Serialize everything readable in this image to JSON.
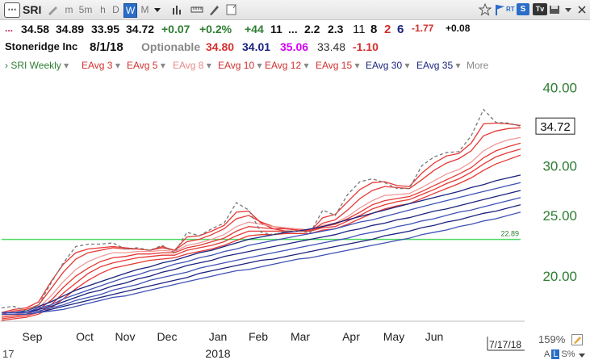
{
  "toolbar": {
    "ticker": "SRI",
    "periods": [
      "m",
      "5m",
      "h",
      "D",
      "W",
      "M"
    ],
    "active_period": "W",
    "icons": [
      "ticker-box-icon",
      "pencil-icon",
      "bar-chart-icon",
      "ruler-icon",
      "draw-pencil-icon",
      "note-icon",
      "star-icon",
      "flag-icon",
      "rt-badge-icon",
      "s-badge-icon",
      "tv-badge-icon",
      "save-icon",
      "settings-icon",
      "close-icon"
    ],
    "rt_label": "RT",
    "s_label": "S",
    "tv_label": "Tv"
  },
  "quote": {
    "dots": "...",
    "open": "34.58",
    "high": "34.89",
    "low": "33.95",
    "close": "34.72",
    "change": "+0.07",
    "change_pct": "+0.2%",
    "val1": "+44",
    "val2": "11",
    "val3": "...",
    "val4": "2.2",
    "val5": "2.3",
    "val6": "11",
    "val7": "8",
    "val8": "2",
    "val9": "6",
    "val10": "-1.77",
    "val11": "+0.08"
  },
  "info": {
    "name": "Stoneridge Inc",
    "date": "8/1/18",
    "optionable": "Optionable",
    "v1": "34.80",
    "v2": "34.01",
    "v3": "35.06",
    "v4": "33.48",
    "v5": "-1.10"
  },
  "legend": {
    "items": [
      {
        "label": "SRI Weekly",
        "color": "#2e7d32"
      },
      {
        "label": "EAvg 3",
        "color": "#d32f2f"
      },
      {
        "label": "EAvg 5",
        "color": "#d32f2f"
      },
      {
        "label": "EAvg 8",
        "color": "#e88a8a"
      },
      {
        "label": "EAvg 10",
        "color": "#d32f2f"
      },
      {
        "label": "EAvg 12",
        "color": "#d32f2f"
      },
      {
        "label": "EAvg 15",
        "color": "#d32f2f"
      },
      {
        "label": "EAvg 30",
        "color": "#1a237e"
      },
      {
        "label": "EAvg 35",
        "color": "#1a237e"
      }
    ],
    "more": "More"
  },
  "chart_data": {
    "type": "line",
    "x_labels": [
      "Sep",
      "Oct",
      "Nov",
      "Dec",
      "Jan",
      "Feb",
      "Mar",
      "Apr",
      "May",
      "Jun"
    ],
    "year_label": "2018",
    "left_edge_label": "17",
    "date_label": "7/17/18",
    "zoom": "159%",
    "y_ticks": [
      "40.00",
      "30.00",
      "25.00",
      "20.00"
    ],
    "ylim": [
      17.0,
      42.0
    ],
    "current_price": "34.72",
    "hline_value": 22.89,
    "hline_label": "22.89",
    "colors": {
      "price": "#777777",
      "red": "#e53935",
      "pink": "#ef9a9a",
      "blue": "#1a237e",
      "bline": "#3f51b5",
      "hline": "#4cd964",
      "axis": "#2e7d32"
    },
    "price": [
      17.8,
      17.9,
      17.6,
      18.0,
      19.5,
      21.0,
      22.3,
      22.5,
      22.5,
      22.6,
      22.1,
      22.2,
      22.0,
      22.4,
      21.8,
      23.5,
      23.2,
      23.8,
      24.3,
      26.2,
      25.5,
      23.5,
      23.3,
      23.6,
      23.6,
      23.5,
      25.5,
      25.0,
      27.0,
      28.3,
      28.6,
      28.2,
      27.6,
      27.6,
      30.0,
      31.0,
      31.5,
      31.6,
      33.5,
      36.9,
      35.2,
      35.1,
      34.7
    ],
    "series": [
      {
        "name": "EAvg 3",
        "values": [
          17.5,
          17.7,
          17.8,
          18.2,
          19.6,
          20.9,
          21.8,
          22.1,
          22.2,
          22.3,
          22.2,
          22.1,
          22.0,
          22.3,
          22.0,
          23.1,
          23.2,
          23.6,
          24.1,
          25.3,
          25.4,
          24.3,
          23.8,
          23.6,
          23.6,
          23.6,
          24.8,
          25.1,
          26.3,
          27.5,
          28.2,
          28.3,
          27.9,
          27.8,
          29.2,
          30.3,
          31.1,
          31.4,
          32.6,
          35.0,
          35.1,
          35.0,
          34.8
        ]
      },
      {
        "name": "EAvg 5",
        "values": [
          17.4,
          17.6,
          17.7,
          18.0,
          19.1,
          20.3,
          21.3,
          21.8,
          22.0,
          22.2,
          22.1,
          22.1,
          22.0,
          22.2,
          22.0,
          22.7,
          22.9,
          23.3,
          23.8,
          24.7,
          25.0,
          24.4,
          24.0,
          23.8,
          23.7,
          23.6,
          24.3,
          24.6,
          25.5,
          26.6,
          27.4,
          27.8,
          27.7,
          27.6,
          28.5,
          29.5,
          30.3,
          30.8,
          31.7,
          33.5,
          34.1,
          34.4,
          34.5
        ]
      },
      {
        "name": "EAvg 8",
        "values": [
          17.3,
          17.4,
          17.5,
          17.8,
          18.6,
          19.6,
          20.5,
          21.1,
          21.5,
          21.8,
          21.8,
          21.9,
          21.9,
          22.0,
          21.9,
          22.4,
          22.6,
          22.9,
          23.3,
          24.0,
          24.4,
          24.2,
          24.0,
          23.9,
          23.8,
          23.7,
          24.1,
          24.3,
          24.9,
          25.7,
          26.4,
          26.9,
          27.0,
          27.1,
          27.7,
          28.4,
          29.1,
          29.6,
          30.4,
          31.7,
          32.5,
          33.0,
          33.3
        ]
      },
      {
        "name": "EAvg 10",
        "values": [
          17.2,
          17.3,
          17.4,
          17.7,
          18.3,
          19.2,
          20.0,
          20.6,
          21.1,
          21.4,
          21.5,
          21.7,
          21.7,
          21.8,
          21.8,
          22.2,
          22.4,
          22.7,
          23.0,
          23.6,
          24.0,
          23.9,
          23.8,
          23.8,
          23.7,
          23.7,
          24.0,
          24.2,
          24.7,
          25.3,
          26.0,
          26.4,
          26.6,
          26.8,
          27.3,
          27.9,
          28.5,
          29.1,
          29.8,
          30.9,
          31.7,
          32.2,
          32.6
        ]
      },
      {
        "name": "EAvg 12",
        "values": [
          17.1,
          17.2,
          17.3,
          17.5,
          18.0,
          18.8,
          19.5,
          20.2,
          20.7,
          21.0,
          21.2,
          21.4,
          21.5,
          21.6,
          21.6,
          22.0,
          22.2,
          22.4,
          22.7,
          23.2,
          23.6,
          23.6,
          23.6,
          23.6,
          23.6,
          23.6,
          23.9,
          24.0,
          24.5,
          25.0,
          25.6,
          26.0,
          26.3,
          26.5,
          27.0,
          27.5,
          28.1,
          28.6,
          29.3,
          30.2,
          31.0,
          31.5,
          31.9
        ]
      },
      {
        "name": "EAvg 15",
        "values": [
          17.0,
          17.1,
          17.2,
          17.4,
          17.8,
          18.4,
          19.1,
          19.7,
          20.2,
          20.6,
          20.8,
          21.0,
          21.2,
          21.3,
          21.4,
          21.7,
          21.9,
          22.1,
          22.4,
          22.8,
          23.2,
          23.3,
          23.3,
          23.4,
          23.4,
          23.4,
          23.7,
          23.8,
          24.2,
          24.7,
          25.2,
          25.6,
          25.9,
          26.1,
          26.6,
          27.1,
          27.6,
          28.1,
          28.7,
          29.5,
          30.2,
          30.7,
          31.2
        ]
      },
      {
        "name": "EAvg 30",
        "values": [
          17.5,
          17.5,
          17.6,
          17.9,
          18.2,
          18.6,
          19.0,
          19.3,
          19.6,
          19.9,
          20.2,
          20.5,
          20.7,
          21.0,
          21.2,
          21.5,
          21.8,
          22.0,
          22.3,
          22.6,
          22.9,
          23.1,
          23.3,
          23.5,
          23.6,
          23.8,
          24.0,
          24.3,
          24.6,
          24.9,
          25.2,
          25.5,
          25.8,
          26.1,
          26.4,
          26.7,
          27.0,
          27.3,
          27.7,
          28.0,
          28.4,
          28.7,
          29.0
        ]
      },
      {
        "name": "EAvg 35",
        "values": [
          17.5,
          17.5,
          17.5,
          17.8,
          18.0,
          18.4,
          18.7,
          19.0,
          19.3,
          19.6,
          19.9,
          20.1,
          20.4,
          20.6,
          20.9,
          21.1,
          21.4,
          21.6,
          21.9,
          22.1,
          22.4,
          22.6,
          22.8,
          23.0,
          23.2,
          23.4,
          23.6,
          23.8,
          24.1,
          24.4,
          24.6,
          24.9,
          25.2,
          25.5,
          25.8,
          26.1,
          26.4,
          26.7,
          27.0,
          27.3,
          27.6,
          27.9,
          28.2
        ]
      },
      {
        "name": "",
        "values": [
          17.5,
          17.5,
          17.5,
          17.7,
          17.9,
          18.2,
          18.5,
          18.8,
          19.0,
          19.3,
          19.5,
          19.8,
          20.0,
          20.3,
          20.5,
          20.8,
          21.0,
          21.2,
          21.5,
          21.7,
          21.9,
          22.1,
          22.3,
          22.5,
          22.7,
          22.9,
          23.1,
          23.3,
          23.6,
          23.8,
          24.1,
          24.3,
          24.6,
          24.8,
          25.1,
          25.4,
          25.6,
          25.9,
          26.2,
          26.5,
          26.8,
          27.1,
          27.4
        ]
      },
      {
        "name": "",
        "values": [
          17.5,
          17.5,
          17.5,
          17.6,
          17.8,
          18.0,
          18.3,
          18.5,
          18.7,
          19.0,
          19.2,
          19.4,
          19.7,
          19.9,
          20.1,
          20.3,
          20.6,
          20.8,
          21.0,
          21.2,
          21.4,
          21.6,
          21.8,
          22.0,
          22.2,
          22.4,
          22.6,
          22.8,
          23.0,
          23.3,
          23.5,
          23.7,
          24.0,
          24.2,
          24.5,
          24.7,
          25.0,
          25.3,
          25.5,
          25.8,
          26.1,
          26.4,
          26.7
        ]
      },
      {
        "name": "",
        "values": [
          17.4,
          17.4,
          17.4,
          17.5,
          17.7,
          17.9,
          18.1,
          18.3,
          18.5,
          18.7,
          18.9,
          19.1,
          19.3,
          19.5,
          19.7,
          19.9,
          20.2,
          20.4,
          20.6,
          20.8,
          21.0,
          21.2,
          21.3,
          21.5,
          21.7,
          21.9,
          22.1,
          22.3,
          22.5,
          22.7,
          22.9,
          23.2,
          23.4,
          23.6,
          23.9,
          24.1,
          24.4,
          24.6,
          24.9,
          25.2,
          25.4,
          25.7,
          26.0
        ]
      },
      {
        "name": "",
        "values": [
          17.4,
          17.4,
          17.4,
          17.5,
          17.6,
          17.7,
          17.9,
          18.1,
          18.3,
          18.5,
          18.6,
          18.8,
          19.0,
          19.2,
          19.4,
          19.6,
          19.8,
          20.0,
          20.2,
          20.4,
          20.5,
          20.7,
          20.9,
          21.1,
          21.3,
          21.4,
          21.6,
          21.8,
          22.0,
          22.2,
          22.4,
          22.6,
          22.8,
          23.0,
          23.3,
          23.5,
          23.7,
          24.0,
          24.2,
          24.5,
          24.7,
          25.0,
          25.3
        ]
      }
    ]
  }
}
